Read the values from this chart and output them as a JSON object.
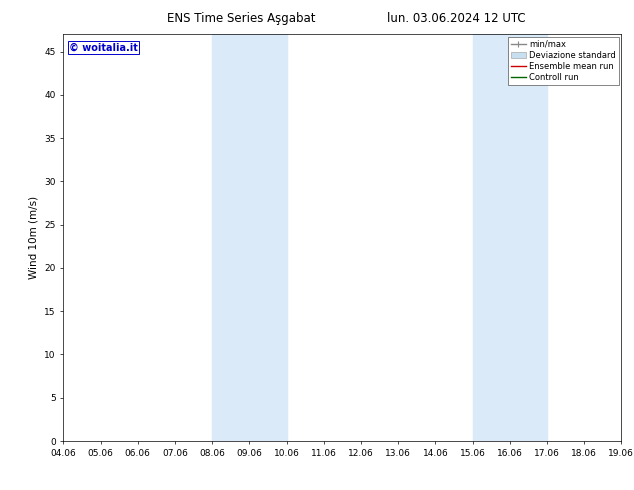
{
  "title_left": "ENS Time Series Aşgabat",
  "title_right": "lun. 03.06.2024 12 UTC",
  "ylabel": "Wind 10m (m/s)",
  "watermark": "© woitalia.it",
  "watermark_color": "#0000cc",
  "x_ticks": [
    "04.06",
    "05.06",
    "06.06",
    "07.06",
    "08.06",
    "09.06",
    "10.06",
    "11.06",
    "12.06",
    "13.06",
    "14.06",
    "15.06",
    "16.06",
    "17.06",
    "18.06",
    "19.06"
  ],
  "y_ticks": [
    0,
    5,
    10,
    15,
    20,
    25,
    30,
    35,
    40,
    45
  ],
  "ylim": [
    0,
    47
  ],
  "xlim": [
    0,
    15
  ],
  "shaded_regions": [
    {
      "x_start": 4,
      "x_end": 6,
      "color": "#daeaf8"
    },
    {
      "x_start": 11,
      "x_end": 13,
      "color": "#daeaf8"
    }
  ],
  "legend_entries": [
    {
      "label": "min/max",
      "color": "#888888",
      "lw": 1
    },
    {
      "label": "Deviazione standard",
      "color": "#c8dff0",
      "lw": 5
    },
    {
      "label": "Ensemble mean run",
      "color": "#cc0000",
      "lw": 1
    },
    {
      "label": "Controll run",
      "color": "#006600",
      "lw": 1
    }
  ],
  "bg_color": "#ffffff",
  "tick_fontsize": 6.5,
  "label_fontsize": 7.5,
  "title_fontsize": 8.5,
  "watermark_fontsize": 7
}
